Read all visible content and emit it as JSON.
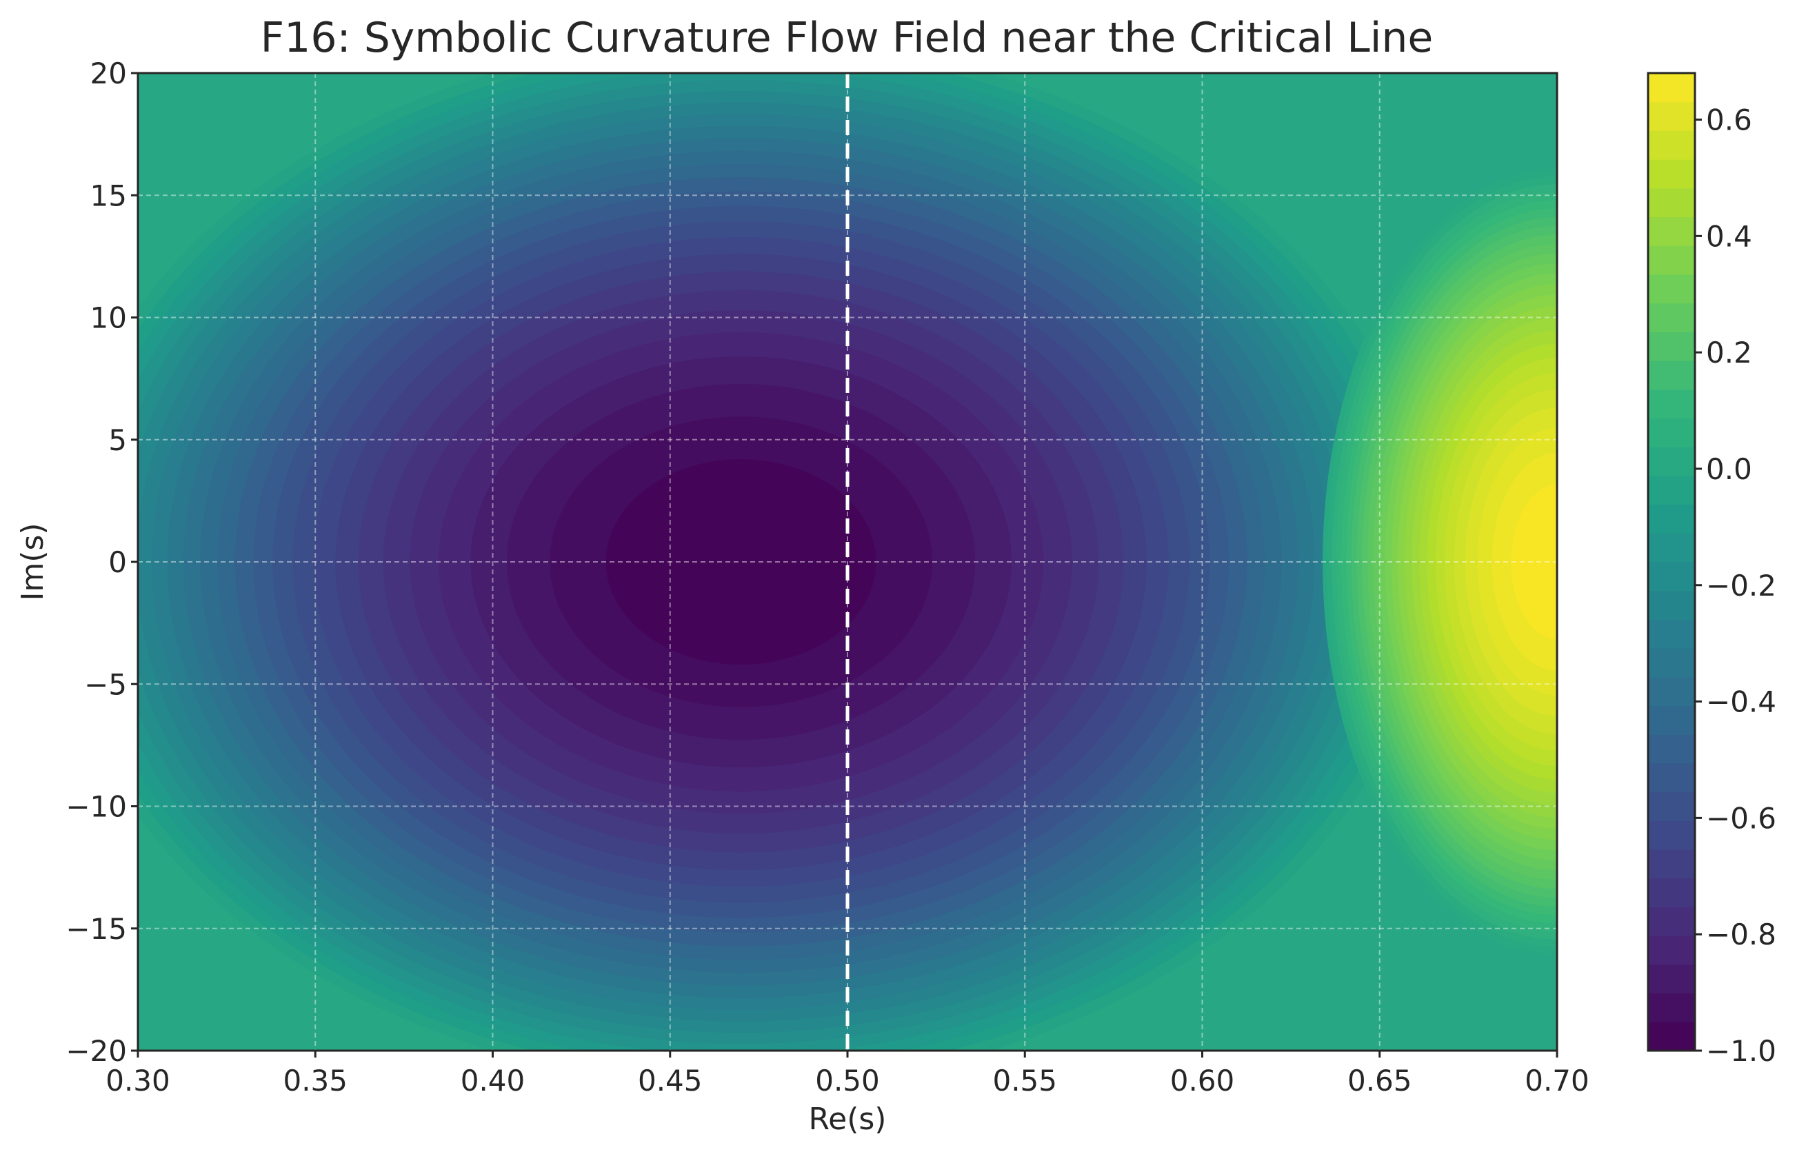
{
  "chart_data": {
    "type": "heatmap",
    "title": "F16: Symbolic Curvature Flow Field near the Critical Line",
    "xlabel": "Re(s)",
    "ylabel": "Im(s)",
    "xlim": [
      0.3,
      0.7
    ],
    "ylim": [
      -20,
      20
    ],
    "x_ticks": [
      "0.30",
      "0.35",
      "0.40",
      "0.45",
      "0.50",
      "0.55",
      "0.60",
      "0.65",
      "0.70"
    ],
    "x_tick_values": [
      0.3,
      0.35,
      0.4,
      0.45,
      0.5,
      0.55,
      0.6,
      0.65,
      0.7
    ],
    "y_ticks": [
      "20",
      "15",
      "10",
      "5",
      "0",
      "−5",
      "−10",
      "−15",
      "−20"
    ],
    "y_tick_values": [
      20,
      15,
      10,
      5,
      0,
      -5,
      -10,
      -15,
      -20
    ],
    "grid": true,
    "colormap": "viridis",
    "colorbar": {
      "vmin": -1.0,
      "vmax": 0.68,
      "ticks": [
        "−1.0",
        "−0.8",
        "−0.6",
        "−0.4",
        "−0.2",
        "0.0",
        "0.2",
        "0.4",
        "0.6"
      ],
      "tick_values": [
        -1.0,
        -0.8,
        -0.6,
        -0.4,
        -0.2,
        0.0,
        0.2,
        0.4,
        0.6
      ]
    },
    "field_features": [
      {
        "kind": "minimum",
        "x": 0.47,
        "y": 0,
        "value": -1.0
      },
      {
        "kind": "maximum",
        "x": 0.7,
        "y": 0,
        "value": 0.68
      }
    ],
    "background_value": 0.0,
    "critical_line": {
      "x": 0.5,
      "style": "dashed",
      "color": "#ffffff"
    },
    "colors": {
      "viridis": [
        "#440154",
        "#482878",
        "#3e4989",
        "#31688e",
        "#26828e",
        "#1f9e89",
        "#35b779",
        "#6ece58",
        "#b5de2b",
        "#fde725"
      ]
    }
  }
}
